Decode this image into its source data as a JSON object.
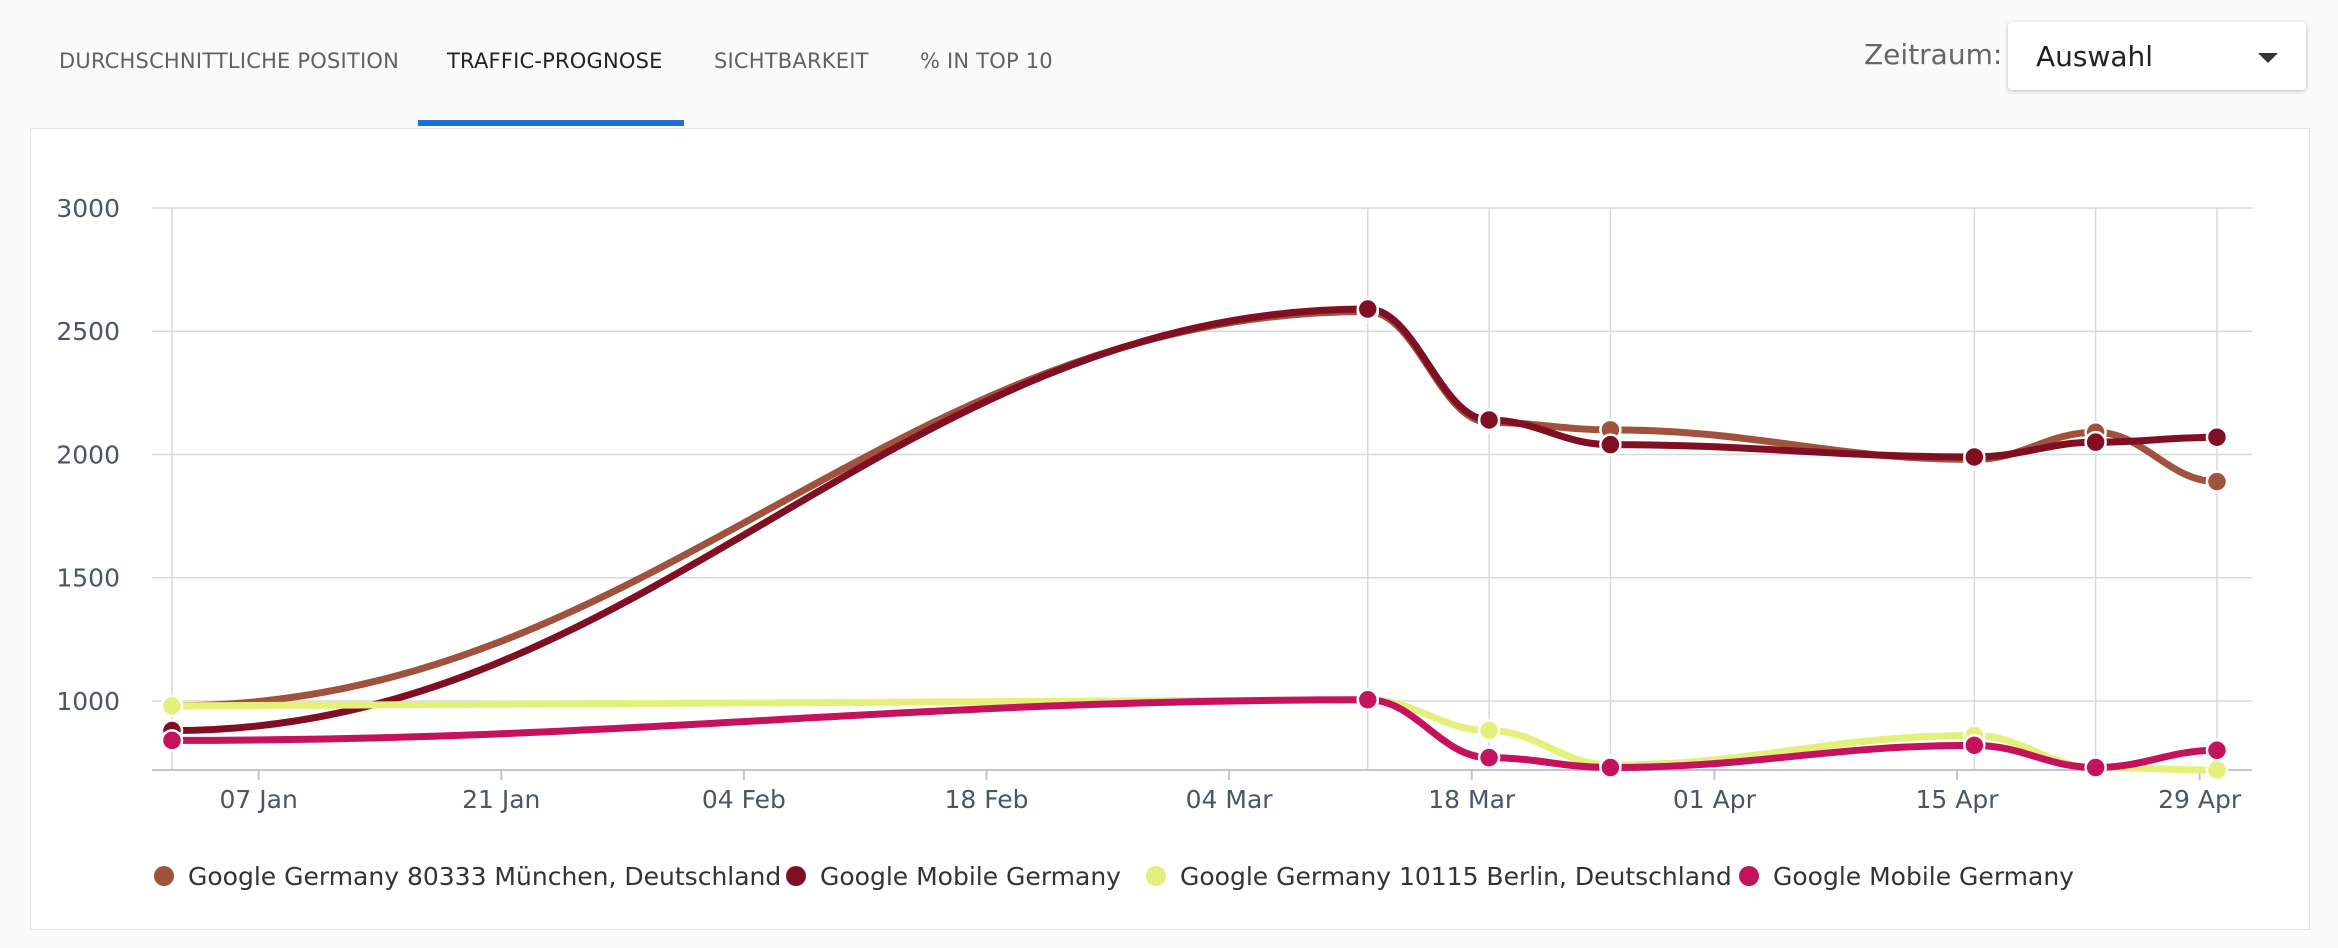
{
  "tabs": [
    {
      "label": "DURCHSCHNITTLICHE POSITION"
    },
    {
      "label": "TRAFFIC-PROGNOSE"
    },
    {
      "label": "SICHTBARKEIT"
    },
    {
      "label": "% IN TOP 10"
    }
  ],
  "active_tab": "TRAFFIC-PROGNOSE",
  "period": {
    "label": "Zeitraum:",
    "value": "Auswahl"
  },
  "colors": {
    "accent": "#1e6fd1"
  },
  "chart_data": {
    "type": "line",
    "x": [
      "2019-01-02",
      "2019-03-12",
      "2019-03-19",
      "2019-03-26",
      "2019-04-16",
      "2019-04-23",
      "2019-04-30"
    ],
    "x_tick_labels": [
      "07 Jan",
      "21 Jan",
      "04 Feb",
      "18 Feb",
      "04 Mar",
      "18 Mar",
      "01 Apr",
      "15 Apr",
      "29 Apr"
    ],
    "y_tick_labels": [
      "1000",
      "1500",
      "2000",
      "2500",
      "3000"
    ],
    "ylim": [
      720,
      3000
    ],
    "grid": true,
    "legend_position": "bottom",
    "series": [
      {
        "name": "Google Germany 80333 München, Deutschland",
        "color": "#a0523d",
        "values": [
          980,
          2580,
          2130,
          2100,
          1980,
          2090,
          1890
        ]
      },
      {
        "name": "Google Mobile Germany",
        "color": "#800f24",
        "values": [
          880,
          2590,
          2140,
          2040,
          1990,
          2050,
          2070
        ]
      },
      {
        "name": "Google Germany 10115 Berlin, Deutschland",
        "color": "#e3f07a",
        "values": [
          980,
          1005,
          880,
          740,
          860,
          730,
          720
        ]
      },
      {
        "name": "Google Mobile Germany",
        "color": "#c4125c",
        "values": [
          840,
          1005,
          770,
          730,
          820,
          730,
          800
        ]
      }
    ]
  }
}
